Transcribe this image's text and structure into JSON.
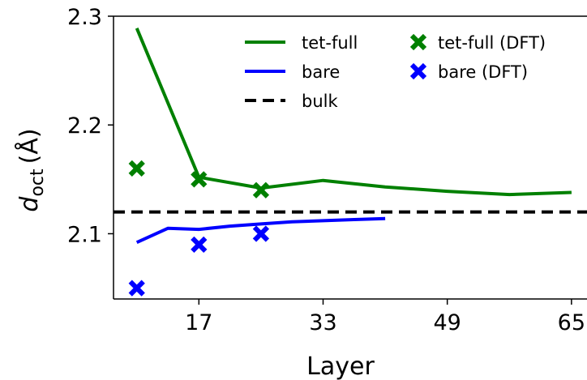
{
  "chart_data": {
    "type": "line",
    "xlabel": "Layer",
    "ylabel_main": "d",
    "ylabel_sub": "oct",
    "ylabel_unit": "(Å)",
    "xlim": [
      6,
      67
    ],
    "ylim": [
      2.04,
      2.3
    ],
    "xticks": [
      17,
      33,
      49,
      65
    ],
    "yticks": [
      2.1,
      2.2,
      2.3
    ],
    "xtick_labels": [
      "17",
      "33",
      "49",
      "65"
    ],
    "ytick_labels": [
      "2.1",
      "2.2",
      "2.3"
    ],
    "grid": false,
    "legend_position": "top-right",
    "series": [
      {
        "name": "tet-full",
        "kind": "line",
        "color": "#008000",
        "x": [
          9,
          17,
          25,
          33,
          41,
          49,
          57,
          65
        ],
        "y": [
          2.289,
          2.152,
          2.142,
          2.149,
          2.143,
          2.139,
          2.136,
          2.138
        ]
      },
      {
        "name": "bare",
        "kind": "line",
        "color": "#0000ff",
        "x": [
          9,
          13,
          17,
          21,
          25,
          29,
          33,
          37,
          41
        ],
        "y": [
          2.092,
          2.105,
          2.104,
          2.107,
          2.109,
          2.111,
          2.112,
          2.113,
          2.114
        ]
      },
      {
        "name": "bulk",
        "kind": "hline",
        "color": "#000000",
        "y": 2.12
      },
      {
        "name": "tet-full (DFT)",
        "kind": "scatter",
        "color": "#008000",
        "x": [
          9,
          17,
          25
        ],
        "y": [
          2.16,
          2.15,
          2.14
        ]
      },
      {
        "name": "bare (DFT)",
        "kind": "scatter",
        "color": "#0000ff",
        "x": [
          9,
          17,
          25
        ],
        "y": [
          2.05,
          2.09,
          2.1
        ]
      }
    ]
  }
}
